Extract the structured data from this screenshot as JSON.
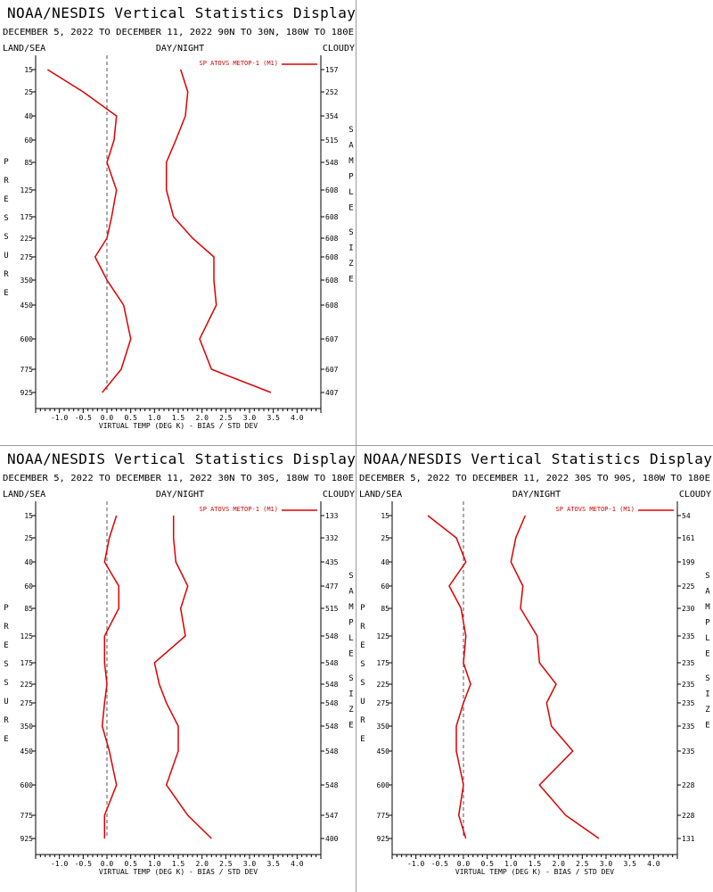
{
  "colors": {
    "series": "#dd0000",
    "zero_line": "#555555",
    "axis": "#000000",
    "divider": "#9a9a9a"
  },
  "header_labels": {
    "left": "LAND/SEA",
    "center": "DAY/NIGHT",
    "right": "CLOUDY"
  },
  "chart_data": [
    {
      "type": "line",
      "title": "NOAA/NESDIS Vertical Statistics Display",
      "subtitle": "DECEMBER 5, 2022 TO DECEMBER 11, 2022 90N TO 30N, 180W TO 180E",
      "legend": "SP ATOVS METOP-1 (M1)",
      "legend_position": "top-right",
      "xlabel": "VIRTUAL TEMP (DEG K) - BIAS / STD DEV",
      "ylabel_left": "PRESSURE",
      "ylabel_right": "SAMPLE SIZE",
      "xlim": [
        -1.5,
        4.5
      ],
      "x_ticks": [
        "-1.0",
        "-0.5",
        "0.0",
        "0.5",
        "1.0",
        "1.5",
        "2.0",
        "2.5",
        "3.0",
        "3.5",
        "4.0"
      ],
      "pressure_levels": [
        "15",
        "25",
        "40",
        "60",
        "85",
        "125",
        "175",
        "225",
        "275",
        "350",
        "450",
        "600",
        "775",
        "925"
      ],
      "sample_size": [
        "157",
        "252",
        "354",
        "515",
        "548",
        "608",
        "608",
        "608",
        "608",
        "608",
        "608",
        "607",
        "607",
        "407"
      ],
      "series": [
        {
          "values": [
            -1.25,
            -0.5,
            0.2,
            0.15,
            0.0,
            0.2,
            0.1,
            0.0,
            -0.25,
            0.0,
            0.35,
            0.5,
            0.3,
            -0.1
          ]
        },
        {
          "values": [
            1.55,
            1.7,
            1.65,
            1.45,
            1.25,
            1.25,
            1.4,
            1.8,
            2.25,
            2.25,
            2.3,
            1.95,
            2.2,
            3.45
          ]
        }
      ]
    },
    {
      "type": "line",
      "title": "NOAA/NESDIS Vertical Statistics Display",
      "subtitle": "DECEMBER 5, 2022 TO DECEMBER 11, 2022 30N TO 30S, 180W TO 180E",
      "legend": "SP ATOVS METOP-1 (M1)",
      "legend_position": "top-right",
      "xlabel": "VIRTUAL TEMP (DEG K) - BIAS / STD DEV",
      "ylabel_left": "PRESSURE",
      "ylabel_right": "SAMPLE SIZE",
      "xlim": [
        -1.5,
        4.5
      ],
      "x_ticks": [
        "-1.0",
        "-0.5",
        "0.0",
        "0.5",
        "1.0",
        "1.5",
        "2.0",
        "2.5",
        "3.0",
        "3.5",
        "4.0"
      ],
      "pressure_levels": [
        "15",
        "25",
        "40",
        "60",
        "85",
        "125",
        "175",
        "225",
        "275",
        "350",
        "450",
        "600",
        "775",
        "925"
      ],
      "sample_size": [
        "133",
        "332",
        "435",
        "477",
        "515",
        "548",
        "548",
        "548",
        "548",
        "548",
        "548",
        "548",
        "547",
        "400"
      ],
      "series": [
        {
          "values": [
            0.2,
            0.05,
            -0.05,
            0.25,
            0.25,
            -0.05,
            -0.05,
            0.0,
            -0.05,
            -0.1,
            0.05,
            0.2,
            -0.05,
            -0.05
          ]
        },
        {
          "values": [
            1.4,
            1.4,
            1.45,
            1.7,
            1.55,
            1.65,
            1.0,
            1.1,
            1.25,
            1.5,
            1.5,
            1.25,
            1.7,
            2.2
          ]
        }
      ]
    },
    {
      "type": "line",
      "title": "NOAA/NESDIS Vertical Statistics Display",
      "subtitle": "DECEMBER 5, 2022 TO DECEMBER 11, 2022 30S TO 90S, 180W TO 180E",
      "legend": "SP ATOVS METOP-1 (M1)",
      "legend_position": "top-right",
      "xlabel": "VIRTUAL TEMP (DEG K) - BIAS / STD DEV",
      "ylabel_left": "PRESSURE",
      "ylabel_right": "SAMPLE SIZE",
      "xlim": [
        -1.5,
        4.5
      ],
      "x_ticks": [
        "-1.0",
        "-0.5",
        "0.0",
        "0.5",
        "1.0",
        "1.5",
        "2.0",
        "2.5",
        "3.0",
        "3.5",
        "4.0"
      ],
      "pressure_levels": [
        "15",
        "25",
        "40",
        "60",
        "85",
        "125",
        "175",
        "225",
        "275",
        "350",
        "450",
        "600",
        "775",
        "925"
      ],
      "sample_size": [
        "54",
        "161",
        "199",
        "225",
        "230",
        "235",
        "235",
        "235",
        "235",
        "235",
        "235",
        "228",
        "228",
        "131"
      ],
      "series": [
        {
          "values": [
            -0.75,
            -0.15,
            0.05,
            -0.3,
            -0.05,
            0.05,
            0.0,
            0.15,
            0.0,
            -0.15,
            -0.15,
            0.0,
            -0.1,
            0.05
          ]
        },
        {
          "values": [
            1.3,
            1.1,
            1.0,
            1.25,
            1.2,
            1.55,
            1.6,
            1.95,
            1.75,
            1.85,
            2.3,
            1.6,
            2.15,
            2.85
          ]
        }
      ]
    }
  ]
}
